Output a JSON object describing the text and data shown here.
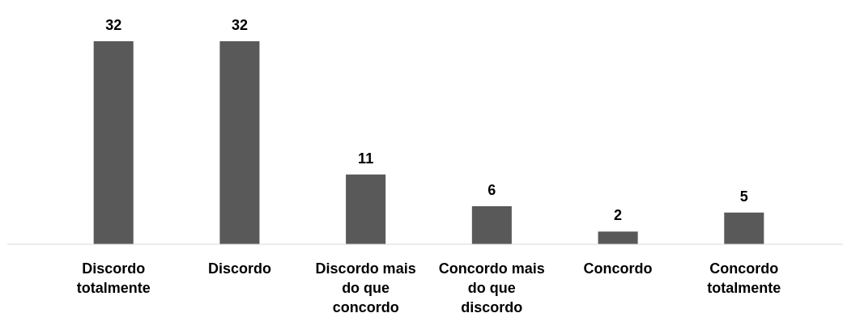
{
  "chart_data": {
    "type": "bar",
    "categories": [
      "Discordo totalmente",
      "Discordo",
      "Discordo mais do que concordo",
      "Concordo mais do que discordo",
      "Concordo",
      "Concordo totalmente"
    ],
    "values": [
      32,
      32,
      11,
      6,
      2,
      5
    ],
    "color": "#595959",
    "data_labels": true
  }
}
